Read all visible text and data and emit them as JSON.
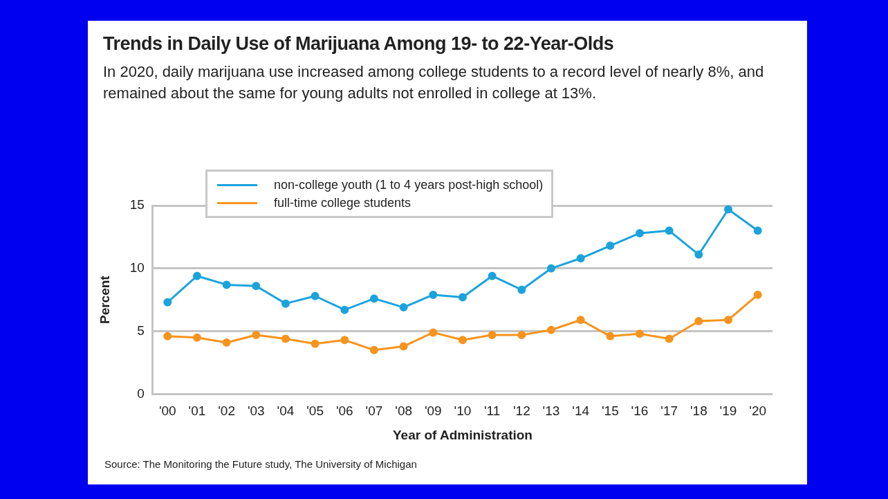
{
  "chart_data": {
    "type": "line",
    "title": "Trends in Daily Use of Marijuana Among 19- to 22-Year-Olds",
    "subtitle": "In 2020, daily marijuana use increased among college students to a record level of nearly 8%, and remained about the same for young adults not enrolled in college at 13%.",
    "xlabel": "Year of Administration",
    "ylabel": "Percent",
    "categories": [
      "'00",
      "'01",
      "'02",
      "'03",
      "'04",
      "'05",
      "'06",
      "'07",
      "'08",
      "'09",
      "'10",
      "'11",
      "'12",
      "'13",
      "'14",
      "'15",
      "'16",
      "'17",
      "'18",
      "'19",
      "'20"
    ],
    "series": [
      {
        "name": "non-college youth (1 to 4 years post-high school)",
        "color": "#1ba3dc",
        "values": [
          7.3,
          9.4,
          8.7,
          8.6,
          7.2,
          7.8,
          6.7,
          7.6,
          6.9,
          7.9,
          7.7,
          9.4,
          8.3,
          10.0,
          10.8,
          11.8,
          12.8,
          13.0,
          11.1,
          14.7,
          13.0
        ]
      },
      {
        "name": "full-time college students",
        "color": "#f7941d",
        "values": [
          4.6,
          4.5,
          4.1,
          4.7,
          4.4,
          4.0,
          4.3,
          3.5,
          3.8,
          4.9,
          4.3,
          4.7,
          4.7,
          5.1,
          5.9,
          4.6,
          4.8,
          4.4,
          5.8,
          5.9,
          7.9
        ]
      }
    ],
    "ylim": [
      0,
      15
    ],
    "yticks": [
      0,
      5,
      10,
      15
    ],
    "grid": "y",
    "legend": "top left",
    "marker": "circle",
    "line_style": "solid",
    "annotations": [
      "Source: The Monitoring the Future study, The University of Michigan"
    ]
  }
}
